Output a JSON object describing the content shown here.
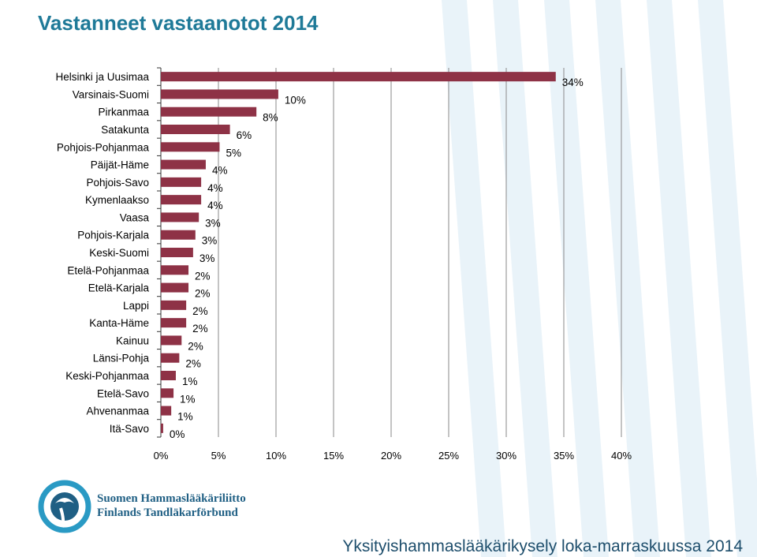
{
  "title": "Vastanneet vastaanotot 2014",
  "footer": "Yksityishammaslääkärikysely loka-marraskuussa 2014",
  "logo": {
    "line1": "Suomen Hammaslääkäriliitto",
    "line2": "Finlands Tandläkarförbund"
  },
  "colors": {
    "bar": "#8e3246",
    "title": "#1f7a98",
    "stripe": "#e9f3f9",
    "logo": "#1f5f84"
  },
  "chart_data": {
    "type": "bar",
    "orientation": "horizontal",
    "categories": [
      "Helsinki ja Uusimaa",
      "Varsinais-Suomi",
      "Pirkanmaa",
      "Satakunta",
      "Pohjois-Pohjanmaa",
      "Päijät-Häme",
      "Pohjois-Savo",
      "Kymenlaakso",
      "Vaasa",
      "Pohjois-Karjala",
      "Keski-Suomi",
      "Etelä-Pohjanmaa",
      "Etelä-Karjala",
      "Lappi",
      "Kanta-Häme",
      "Kainuu",
      "Länsi-Pohja",
      "Keski-Pohjanmaa",
      "Etelä-Savo",
      "Ahvenanmaa",
      "Itä-Savo"
    ],
    "values": [
      34.3,
      10.2,
      8.3,
      6.0,
      5.1,
      3.9,
      3.5,
      3.5,
      3.3,
      3.0,
      2.8,
      2.4,
      2.4,
      2.2,
      2.2,
      1.8,
      1.6,
      1.3,
      1.1,
      0.9,
      0.2
    ],
    "data_labels": [
      "34%",
      "10%",
      "8%",
      "6%",
      "5%",
      "4%",
      "4%",
      "4%",
      "3%",
      "3%",
      "3%",
      "2%",
      "2%",
      "2%",
      "2%",
      "2%",
      "2%",
      "1%",
      "1%",
      "1%",
      "0%"
    ],
    "xlim": [
      0,
      40
    ],
    "xticks": [
      "0%",
      "5%",
      "10%",
      "15%",
      "20%",
      "25%",
      "30%",
      "35%",
      "40%"
    ],
    "grid": true,
    "legend": "none"
  }
}
